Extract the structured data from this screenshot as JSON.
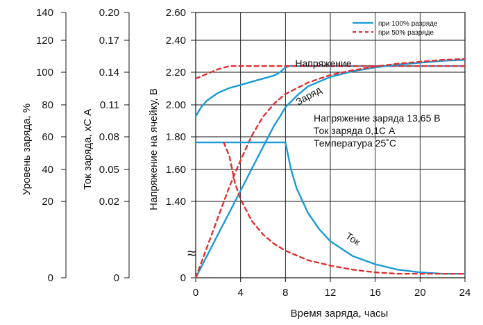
{
  "chart_data": {
    "type": "line",
    "xlabel": "Время заряда, часы",
    "xticks": [
      "0",
      "4",
      "8",
      "12",
      "16",
      "20",
      "24"
    ],
    "xlim": [
      0,
      24
    ],
    "ylabel": "Напряжение на ячейку, В",
    "ylim": [
      1.2,
      2.6
    ],
    "yticks_main": [
      "0",
      "1.40",
      "1.60",
      "1.80",
      "2.00",
      "2.20",
      "2.40",
      "2.60"
    ],
    "axis_break": "≈",
    "extra_axes": [
      {
        "label": "Уровень заряда, %",
        "ticks": [
          "0",
          "20",
          "40",
          "60",
          "80",
          "100",
          "120",
          "140"
        ]
      },
      {
        "label": "Ток заряда, хС А",
        "ticks": [
          "0",
          "0.02",
          "0.05",
          "0.08",
          "0.11",
          "0.14",
          "0.17",
          "0.20"
        ]
      }
    ],
    "grid": true,
    "legend_position": "top-right",
    "legend": [
      {
        "label": "при 100% разряде",
        "style": "solid",
        "color": "#1a9ad6"
      },
      {
        "label": "при 50% разряде",
        "style": "dashed",
        "color": "#e03030"
      }
    ],
    "annotations": {
      "voltage": "Напряжение",
      "charge": "Заряд",
      "current": "Ток",
      "conditions": [
        "Напряжение заряда 13,65 В",
        "Ток  заряда 0,1С А",
        "Температура 25˚С"
      ]
    },
    "series": [
      {
        "curve": "voltage",
        "discharge": "100%",
        "style": "solid",
        "color": "#1a9ad6",
        "x": [
          0,
          0.5,
          1,
          2,
          3,
          4,
          5,
          6,
          7,
          7.5,
          8,
          8.3,
          10,
          12,
          16,
          20,
          24
        ],
        "y": [
          1.94,
          2.0,
          2.04,
          2.09,
          2.12,
          2.14,
          2.16,
          2.18,
          2.2,
          2.22,
          2.25,
          2.26,
          2.26,
          2.26,
          2.26,
          2.26,
          2.26
        ]
      },
      {
        "curve": "voltage",
        "discharge": "50%",
        "style": "dashed",
        "color": "#e03030",
        "x": [
          0,
          1,
          2,
          3,
          4,
          5,
          6,
          8,
          10,
          12,
          14,
          16,
          18,
          20,
          22,
          24
        ],
        "y": [
          2.18,
          2.21,
          2.24,
          2.26,
          2.26,
          2.26,
          2.26,
          2.26,
          2.26,
          2.26,
          2.26,
          2.26,
          2.26,
          2.26,
          2.26,
          2.26
        ]
      },
      {
        "curve": "charge",
        "discharge": "100%",
        "style": "solid",
        "color": "#1a9ad6",
        "x": [
          0,
          1,
          2,
          3,
          4,
          5,
          6,
          7,
          7.5,
          8,
          9,
          10,
          12,
          14,
          16,
          18,
          20,
          22,
          24
        ],
        "y": [
          0,
          11.5,
          23,
          34.5,
          46,
          57.5,
          69,
          80.5,
          85,
          90,
          96,
          101,
          106,
          109,
          111,
          112.5,
          113.5,
          114.5,
          115
        ]
      },
      {
        "curve": "charge",
        "discharge": "50%",
        "style": "dashed",
        "color": "#e03030",
        "x": [
          0,
          1,
          2,
          3,
          4,
          5,
          6,
          7,
          8,
          10,
          12,
          14,
          16,
          18,
          20,
          22,
          24
        ],
        "y": [
          0,
          16,
          32,
          48,
          62,
          75,
          85,
          92,
          97,
          103,
          107,
          109.5,
          111.5,
          113,
          114,
          115,
          115.5
        ]
      },
      {
        "curve": "current",
        "discharge": "100%",
        "style": "solid",
        "color": "#1a9ad6",
        "x": [
          0,
          7.5,
          8,
          8.5,
          9,
          10,
          11,
          12,
          14,
          16,
          18,
          20,
          22,
          24
        ],
        "y": [
          0.1,
          0.1,
          0.1,
          0.08,
          0.066,
          0.048,
          0.036,
          0.027,
          0.016,
          0.01,
          0.006,
          0.004,
          0.003,
          0.003
        ]
      },
      {
        "curve": "current",
        "discharge": "50%",
        "style": "dashed",
        "color": "#e03030",
        "x": [
          2.5,
          3,
          3.5,
          4,
          5,
          6,
          7,
          8,
          10,
          12,
          14,
          16,
          18,
          20,
          22,
          24
        ],
        "y": [
          0.1,
          0.09,
          0.07,
          0.058,
          0.042,
          0.032,
          0.025,
          0.02,
          0.013,
          0.009,
          0.006,
          0.004,
          0.003,
          0.003,
          0.003,
          0.003
        ]
      }
    ]
  }
}
